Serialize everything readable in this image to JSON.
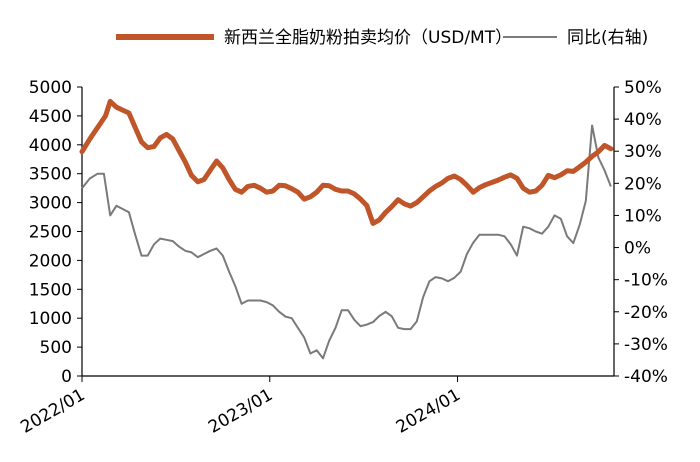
{
  "chart_data": {
    "type": "line",
    "legend": {
      "placement": "top",
      "entries": [
        "新西兰全脂奶粉拍卖均价（USD/MT）",
        "同比(右轴)"
      ]
    },
    "colors": {
      "price": "#c0552a",
      "yoy": "#7a7a7a"
    },
    "left_axis": {
      "ylim": [
        0,
        5000
      ],
      "ticks": [
        0,
        500,
        1000,
        1500,
        2000,
        2500,
        3000,
        3500,
        4000,
        4500,
        5000
      ]
    },
    "right_axis": {
      "ylim": [
        -40,
        50
      ],
      "ticks": [
        "-40%",
        "-30%",
        "-20%",
        "-10%",
        "0%",
        "10%",
        "20%",
        "30%",
        "40%",
        "50%"
      ]
    },
    "x_axis": {
      "xlim": [
        "2022/01",
        "2024/12"
      ],
      "tick_labels": [
        "2022/01",
        "2023/01",
        "2024/01"
      ],
      "tick_months": [
        0,
        12,
        24
      ]
    },
    "grid": false,
    "series": [
      {
        "name": "新西兰全脂奶粉拍卖均价（USD/MT）",
        "axis": "left",
        "points": [
          [
            0.0,
            3880
          ],
          [
            0.5,
            4100
          ],
          [
            1.0,
            4300
          ],
          [
            1.5,
            4500
          ],
          [
            1.8,
            4750
          ],
          [
            2.2,
            4650
          ],
          [
            2.6,
            4600
          ],
          [
            3.0,
            4550
          ],
          [
            3.4,
            4300
          ],
          [
            3.8,
            4050
          ],
          [
            4.2,
            3950
          ],
          [
            4.6,
            3970
          ],
          [
            5.0,
            4120
          ],
          [
            5.4,
            4180
          ],
          [
            5.8,
            4100
          ],
          [
            6.2,
            3900
          ],
          [
            6.6,
            3700
          ],
          [
            7.0,
            3470
          ],
          [
            7.4,
            3360
          ],
          [
            7.8,
            3400
          ],
          [
            8.2,
            3560
          ],
          [
            8.6,
            3720
          ],
          [
            9.0,
            3600
          ],
          [
            9.4,
            3400
          ],
          [
            9.8,
            3230
          ],
          [
            10.2,
            3180
          ],
          [
            10.6,
            3280
          ],
          [
            11.0,
            3300
          ],
          [
            11.4,
            3250
          ],
          [
            11.8,
            3180
          ],
          [
            12.2,
            3200
          ],
          [
            12.6,
            3300
          ],
          [
            13.0,
            3290
          ],
          [
            13.4,
            3240
          ],
          [
            13.8,
            3180
          ],
          [
            14.2,
            3060
          ],
          [
            14.6,
            3100
          ],
          [
            15.0,
            3180
          ],
          [
            15.4,
            3300
          ],
          [
            15.8,
            3290
          ],
          [
            16.2,
            3230
          ],
          [
            16.6,
            3200
          ],
          [
            17.0,
            3200
          ],
          [
            17.4,
            3150
          ],
          [
            17.8,
            3060
          ],
          [
            18.2,
            2950
          ],
          [
            18.6,
            2640
          ],
          [
            19.0,
            2700
          ],
          [
            19.4,
            2830
          ],
          [
            19.8,
            2930
          ],
          [
            20.2,
            3050
          ],
          [
            20.6,
            2980
          ],
          [
            21.0,
            2940
          ],
          [
            21.4,
            3000
          ],
          [
            21.8,
            3100
          ],
          [
            22.2,
            3200
          ],
          [
            22.6,
            3280
          ],
          [
            23.0,
            3340
          ],
          [
            23.4,
            3420
          ],
          [
            23.8,
            3460
          ],
          [
            24.2,
            3400
          ],
          [
            24.6,
            3300
          ],
          [
            25.0,
            3180
          ],
          [
            25.4,
            3260
          ],
          [
            25.8,
            3310
          ],
          [
            26.2,
            3350
          ],
          [
            26.6,
            3390
          ],
          [
            27.0,
            3440
          ],
          [
            27.4,
            3480
          ],
          [
            27.8,
            3420
          ],
          [
            28.2,
            3250
          ],
          [
            28.6,
            3180
          ],
          [
            29.0,
            3200
          ],
          [
            29.4,
            3300
          ],
          [
            29.8,
            3470
          ],
          [
            30.2,
            3430
          ],
          [
            30.6,
            3480
          ],
          [
            31.0,
            3550
          ],
          [
            31.4,
            3540
          ],
          [
            31.8,
            3620
          ],
          [
            32.2,
            3700
          ],
          [
            32.6,
            3800
          ],
          [
            33.0,
            3880
          ],
          [
            33.4,
            3990
          ],
          [
            33.8,
            3930
          ]
        ]
      },
      {
        "name": "同比(右轴)",
        "axis": "right",
        "points": [
          [
            0.0,
            18.5
          ],
          [
            0.5,
            21.5
          ],
          [
            1.0,
            23
          ],
          [
            1.4,
            23
          ],
          [
            1.8,
            10
          ],
          [
            2.2,
            13
          ],
          [
            2.6,
            12
          ],
          [
            3.0,
            11
          ],
          [
            3.4,
            4
          ],
          [
            3.8,
            -2.5
          ],
          [
            4.2,
            -2.5
          ],
          [
            4.6,
            1
          ],
          [
            5.0,
            2.8
          ],
          [
            5.4,
            2.4
          ],
          [
            5.8,
            2
          ],
          [
            6.2,
            0.3
          ],
          [
            6.6,
            -1
          ],
          [
            7.0,
            -1.5
          ],
          [
            7.4,
            -3
          ],
          [
            7.8,
            -2
          ],
          [
            8.2,
            -1
          ],
          [
            8.6,
            -0.3
          ],
          [
            9.0,
            -2.5
          ],
          [
            9.4,
            -7.5
          ],
          [
            9.8,
            -12
          ],
          [
            10.2,
            -17.5
          ],
          [
            10.6,
            -16.5
          ],
          [
            11.0,
            -16.5
          ],
          [
            11.4,
            -16.5
          ],
          [
            11.8,
            -17
          ],
          [
            12.2,
            -18
          ],
          [
            12.6,
            -20
          ],
          [
            13.0,
            -21.5
          ],
          [
            13.4,
            -22
          ],
          [
            13.8,
            -25
          ],
          [
            14.2,
            -28
          ],
          [
            14.6,
            -33
          ],
          [
            15.0,
            -32
          ],
          [
            15.4,
            -34.5
          ],
          [
            15.8,
            -29
          ],
          [
            16.2,
            -25
          ],
          [
            16.6,
            -19.5
          ],
          [
            17.0,
            -19.5
          ],
          [
            17.4,
            -22.5
          ],
          [
            17.8,
            -24.5
          ],
          [
            18.2,
            -24
          ],
          [
            18.6,
            -23.2
          ],
          [
            19.0,
            -21.3
          ],
          [
            19.4,
            -20
          ],
          [
            19.8,
            -21.4
          ],
          [
            20.2,
            -25
          ],
          [
            20.6,
            -25.4
          ],
          [
            21.0,
            -25.4
          ],
          [
            21.4,
            -23
          ],
          [
            21.8,
            -15.5
          ],
          [
            22.2,
            -10.5
          ],
          [
            22.6,
            -9.2
          ],
          [
            23.0,
            -9.6
          ],
          [
            23.4,
            -10.5
          ],
          [
            23.8,
            -9.4
          ],
          [
            24.2,
            -7.5
          ],
          [
            24.6,
            -2
          ],
          [
            25.0,
            1.5
          ],
          [
            25.4,
            4
          ],
          [
            25.8,
            4
          ],
          [
            26.2,
            4
          ],
          [
            26.6,
            4
          ],
          [
            27.0,
            3.5
          ],
          [
            27.4,
            1
          ],
          [
            27.8,
            -2.5
          ],
          [
            28.2,
            6.5
          ],
          [
            28.6,
            6
          ],
          [
            29.0,
            5
          ],
          [
            29.4,
            4.3
          ],
          [
            29.8,
            6.5
          ],
          [
            30.2,
            10
          ],
          [
            30.6,
            9
          ],
          [
            31.0,
            3.5
          ],
          [
            31.4,
            1.4
          ],
          [
            31.8,
            7
          ],
          [
            32.2,
            14.5
          ],
          [
            32.6,
            38
          ],
          [
            33.0,
            28
          ],
          [
            33.4,
            24
          ],
          [
            33.8,
            19
          ]
        ]
      }
    ]
  }
}
